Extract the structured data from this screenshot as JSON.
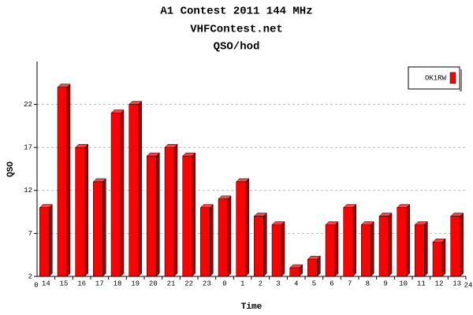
{
  "chart_data": {
    "type": "bar",
    "title": "A1 Contest 2011 144 MHz",
    "subtitle": "VHFContest.net",
    "chart_label": "QSO/hod",
    "x_label": "Time",
    "y_label": "QSO",
    "categories": [
      "14",
      "15",
      "16",
      "17",
      "18",
      "19",
      "20",
      "21",
      "22",
      "23",
      "0",
      "1",
      "2",
      "3",
      "4",
      "5",
      "6",
      "7",
      "8",
      "9",
      "10",
      "11",
      "12",
      "13"
    ],
    "xlim": [
      0,
      24
    ],
    "series": [
      {
        "name": "OK1RW",
        "color": "#ff0000",
        "values": [
          10,
          24,
          17,
          13,
          21,
          22,
          16,
          17,
          16,
          10,
          11,
          13,
          9,
          8,
          3,
          4,
          8,
          10,
          8,
          9,
          10,
          8,
          6,
          9
        ]
      }
    ],
    "ylim": [
      2,
      27
    ],
    "yticks": [
      2,
      7,
      12,
      17,
      22
    ],
    "grid": true,
    "legend": "top-right"
  }
}
